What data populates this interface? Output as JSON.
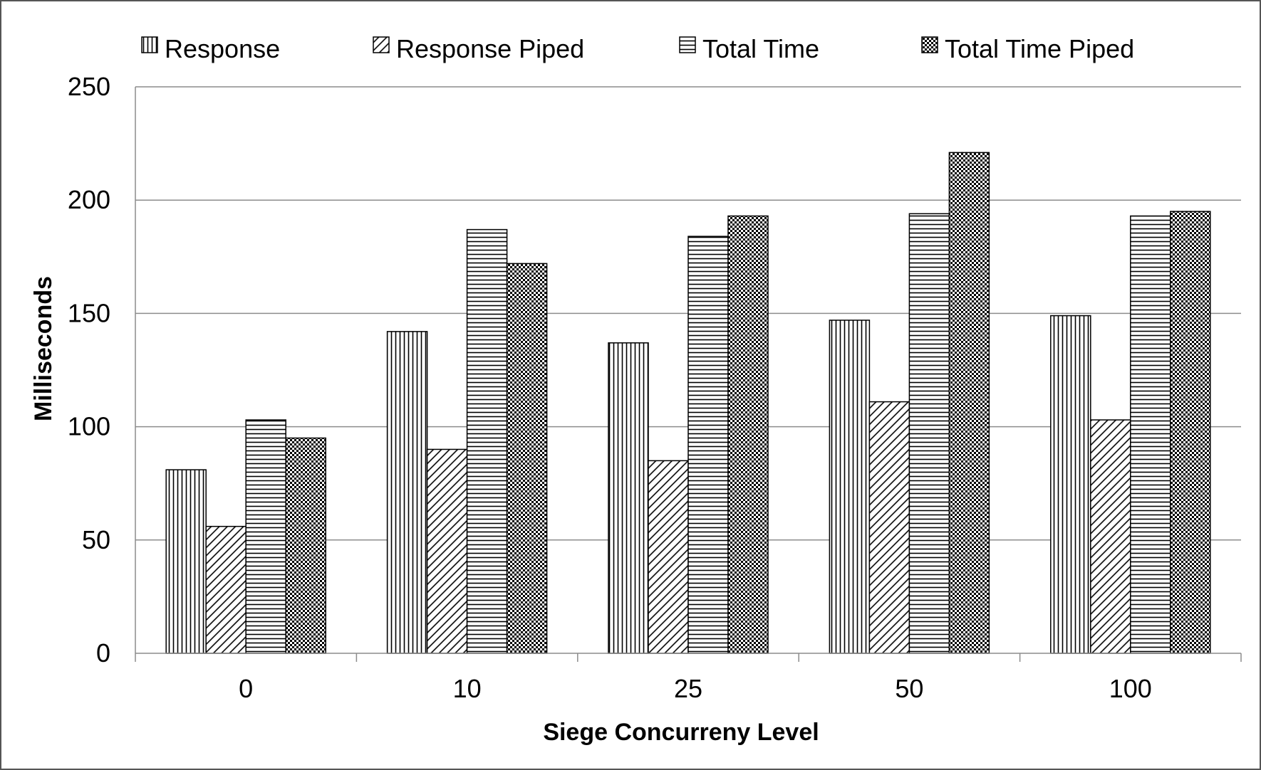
{
  "chart_data": {
    "type": "bar",
    "title": "",
    "xlabel": "Siege Concurreny Level",
    "ylabel": "Milliseconds",
    "categories": [
      "0",
      "10",
      "25",
      "50",
      "100"
    ],
    "series": [
      {
        "name": "Response",
        "pattern": "vertical-lines",
        "values": [
          81,
          142,
          137,
          147,
          149
        ]
      },
      {
        "name": "Response Piped",
        "pattern": "diagonal-lines",
        "values": [
          56,
          90,
          85,
          111,
          103
        ]
      },
      {
        "name": "Total Time",
        "pattern": "horizontal-lines",
        "values": [
          103,
          187,
          184,
          194,
          193
        ]
      },
      {
        "name": "Total Time Piped",
        "pattern": "checkerboard",
        "values": [
          95,
          172,
          193,
          221,
          195
        ]
      }
    ],
    "ylim": [
      0,
      250
    ],
    "yticks": [
      "0",
      "50",
      "100",
      "150",
      "200",
      "250"
    ],
    "grid": true,
    "legend_position": "top",
    "colors": {
      "bar_stroke": "#000000",
      "gridline": "#8c8c8c",
      "axis": "#8c8c8c"
    }
  }
}
